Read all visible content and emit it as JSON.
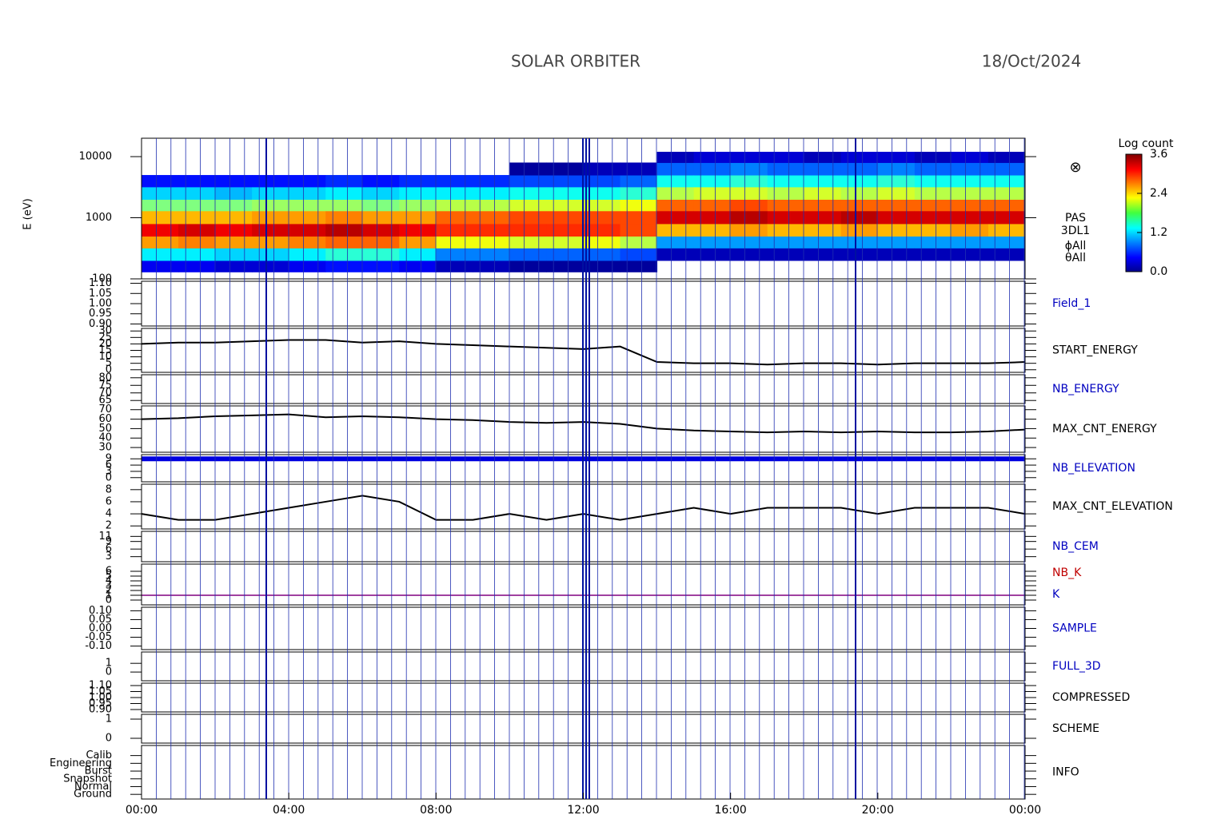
{
  "chart_data": {
    "type": "multipanel",
    "title": "SOLAR ORBITER",
    "date": "18/Oct/2024",
    "xlim": [
      0,
      24
    ],
    "xticks": [
      {
        "value": 0,
        "label": "00:00"
      },
      {
        "value": 4,
        "label": "04:00"
      },
      {
        "value": 8,
        "label": "08:00"
      },
      {
        "value": 12,
        "label": "12:00"
      },
      {
        "value": 16,
        "label": "16:00"
      },
      {
        "value": 20,
        "label": "20:00"
      },
      {
        "value": 24,
        "label": "00:00"
      }
    ],
    "x": [
      0,
      1,
      2,
      3,
      4,
      5,
      6,
      7,
      8,
      9,
      10,
      11,
      12,
      13,
      14,
      15,
      16,
      17,
      18,
      19,
      20,
      21,
      22,
      23,
      24
    ],
    "panels": [
      {
        "type": "spectrogram",
        "ylabel": "E (eV)",
        "log": true,
        "ylim": [
          100,
          20000
        ],
        "yticks": [
          100,
          1000,
          10000
        ],
        "side_labels": [
          "PAS",
          "3DL1",
          "ϕAll",
          "θAll"
        ],
        "colorbar_label": "Log count",
        "zlim": [
          0,
          3.6
        ],
        "zticks": [
          {
            "value": 0,
            "label": "0.0"
          },
          1.2,
          2.4,
          3.6
        ],
        "bins": [
          130,
          200,
          320,
          500,
          800,
          1300,
          2000,
          3200,
          5000,
          8000,
          12000
        ],
        "values": [
          [
            0.4,
            1.3,
            2.6,
            3.2,
            2.5,
            1.8,
            1.2,
            0.5,
            null,
            null
          ],
          [
            0.4,
            1.3,
            2.7,
            3.3,
            2.5,
            1.8,
            1.2,
            0.5,
            null,
            null
          ],
          [
            0.3,
            1.2,
            2.6,
            3.2,
            2.5,
            1.8,
            1.1,
            0.5,
            null,
            null
          ],
          [
            0.3,
            1.2,
            2.6,
            3.3,
            2.6,
            1.9,
            1.2,
            0.5,
            null,
            null
          ],
          [
            0.4,
            1.3,
            2.7,
            3.3,
            2.6,
            1.9,
            1.2,
            0.5,
            null,
            null
          ],
          [
            0.5,
            1.5,
            2.8,
            3.4,
            2.7,
            1.9,
            1.3,
            0.6,
            null,
            null
          ],
          [
            0.5,
            1.5,
            2.8,
            3.3,
            2.6,
            1.8,
            1.2,
            0.5,
            null,
            null
          ],
          [
            0.4,
            1.3,
            2.6,
            3.2,
            2.6,
            1.9,
            1.3,
            0.6,
            null,
            null
          ],
          [
            0.2,
            0.9,
            2.2,
            3.0,
            2.8,
            2.0,
            1.3,
            0.6,
            null,
            null
          ],
          [
            0.2,
            0.9,
            2.2,
            3.0,
            2.8,
            2.0,
            1.3,
            0.6,
            null,
            null
          ],
          [
            0.1,
            0.8,
            2.1,
            3.0,
            2.9,
            2.1,
            1.4,
            0.7,
            0.1,
            null
          ],
          [
            0.1,
            0.8,
            2.1,
            3.0,
            2.9,
            2.1,
            1.4,
            0.7,
            0.1,
            null
          ],
          [
            0.1,
            0.8,
            2.2,
            3.0,
            2.9,
            2.1,
            1.4,
            0.7,
            0.2,
            null
          ],
          [
            0.1,
            0.7,
            2.0,
            2.9,
            2.9,
            2.2,
            1.5,
            0.8,
            0.2,
            null
          ],
          [
            null,
            0.2,
            1.0,
            2.5,
            3.3,
            2.8,
            2.0,
            1.4,
            0.8,
            0.2
          ],
          [
            null,
            0.2,
            1.0,
            2.5,
            3.3,
            2.8,
            2.1,
            1.4,
            0.8,
            0.3
          ],
          [
            null,
            0.2,
            1.0,
            2.6,
            3.4,
            2.9,
            2.1,
            1.5,
            0.9,
            0.3
          ],
          [
            null,
            0.2,
            1.0,
            2.5,
            3.3,
            2.8,
            2.0,
            1.4,
            0.8,
            0.3
          ],
          [
            null,
            0.2,
            1.0,
            2.5,
            3.3,
            2.8,
            2.1,
            1.4,
            0.8,
            0.2
          ],
          [
            null,
            0.2,
            1.0,
            2.6,
            3.4,
            2.8,
            2.0,
            1.4,
            0.8,
            0.3
          ],
          [
            null,
            0.2,
            1.0,
            2.5,
            3.3,
            2.8,
            2.1,
            1.5,
            0.9,
            0.3
          ],
          [
            null,
            0.2,
            1.0,
            2.5,
            3.3,
            2.8,
            2.0,
            1.4,
            0.8,
            0.2
          ],
          [
            null,
            0.2,
            1.0,
            2.6,
            3.3,
            2.8,
            2.0,
            1.4,
            0.8,
            0.3
          ],
          [
            null,
            0.2,
            1.0,
            2.5,
            3.3,
            2.8,
            2.0,
            1.4,
            0.8,
            0.2
          ]
        ]
      },
      {
        "type": "line",
        "labels": [
          {
            "text": "Field_1",
            "color": "#0000c0"
          }
        ],
        "ylim": [
          0.89,
          1.11
        ],
        "yticks": [
          {
            "value": 0.9,
            "label": "0.90"
          },
          0.95,
          {
            "value": 1,
            "label": "1.00"
          },
          1.05,
          {
            "value": 1.1,
            "label": "1.10"
          }
        ],
        "series": []
      },
      {
        "type": "line",
        "labels": [
          {
            "text": "START_ENERGY",
            "color": "#000000"
          }
        ],
        "ylim": [
          -2,
          32
        ],
        "yticks": [
          0,
          5,
          10,
          15,
          20,
          25,
          30
        ],
        "series": [
          {
            "color": "#000000",
            "line_width": 2,
            "values": [
              20,
              21,
              21,
              22,
              23,
              23,
              21,
              22,
              20,
              19,
              18,
              17,
              16,
              18,
              6,
              5,
              5,
              4,
              5,
              5,
              4,
              5,
              5,
              5,
              6
            ]
          }
        ]
      },
      {
        "type": "line",
        "labels": [
          {
            "text": "NB_ENERGY",
            "color": "#0000c0"
          }
        ],
        "ylim": [
          63,
          82
        ],
        "yticks": [
          65,
          70,
          75,
          80
        ],
        "series": []
      },
      {
        "type": "line",
        "labels": [
          {
            "text": "MAX_CNT_ENERGY",
            "color": "#000000"
          }
        ],
        "ylim": [
          25,
          74
        ],
        "yticks": [
          30,
          40,
          50,
          60,
          70
        ],
        "series": [
          {
            "color": "#000000",
            "line_width": 2,
            "values": [
              60,
              61,
              63,
              64,
              65,
              62,
              63,
              62,
              60,
              59,
              57,
              56,
              57,
              55,
              50,
              48,
              47,
              46,
              47,
              46,
              47,
              46,
              46,
              47,
              49
            ]
          }
        ]
      },
      {
        "type": "line",
        "labels": [
          {
            "text": "NB_ELEVATION",
            "color": "#0000c0"
          }
        ],
        "ylim": [
          -2,
          11
        ],
        "yticks": [
          0,
          3,
          6,
          9
        ],
        "series": [
          {
            "color": "#0000e0",
            "line_width": 6,
            "values": [
              9,
              9,
              9,
              9,
              9,
              9,
              9,
              9,
              9,
              9,
              9,
              9,
              9,
              9,
              9,
              9,
              9,
              9,
              9,
              9,
              9,
              9,
              9,
              9,
              9
            ]
          }
        ]
      },
      {
        "type": "line",
        "labels": [
          {
            "text": "MAX_CNT_ELEVATION",
            "color": "#000000"
          }
        ],
        "ylim": [
          1.5,
          8.9
        ],
        "yticks": [
          2,
          4,
          6,
          8
        ],
        "series": [
          {
            "color": "#000000",
            "line_width": 2,
            "values": [
              4,
              3,
              3,
              4,
              5,
              6,
              7,
              6,
              3,
              3,
              4,
              3,
              4,
              3,
              4,
              5,
              4,
              5,
              5,
              5,
              4,
              5,
              5,
              5,
              4
            ]
          }
        ]
      },
      {
        "type": "line",
        "labels": [
          {
            "text": "NB_CEM",
            "color": "#0000c0"
          }
        ],
        "ylim": [
          1,
          13
        ],
        "yticks": [
          3,
          6,
          9,
          11
        ],
        "series": []
      },
      {
        "type": "line",
        "labels": [
          {
            "text": "NB_K",
            "color": "#c00000"
          },
          {
            "text": "K",
            "color": "#0000c0"
          }
        ],
        "ylim": [
          -1,
          7.5
        ],
        "yticks": [
          0,
          1,
          2,
          3,
          4,
          5,
          6
        ],
        "series": [
          {
            "color": "#800080",
            "line_width": 1.5,
            "values": [
              1,
              1,
              1,
              1,
              1,
              1,
              1,
              1,
              1,
              1,
              1,
              1,
              1,
              1,
              1,
              1,
              1,
              1,
              1,
              1,
              1,
              1,
              1,
              1,
              1
            ]
          }
        ]
      },
      {
        "type": "line",
        "labels": [
          {
            "text": "SAMPLE",
            "color": "#0000c0"
          }
        ],
        "ylim": [
          -0.12,
          0.12
        ],
        "yticks": [
          {
            "value": -0.1,
            "label": "-0.10"
          },
          -0.05,
          {
            "value": 0,
            "label": "0.00"
          },
          0.05,
          {
            "value": 0.1,
            "label": "0.10"
          }
        ],
        "series": []
      },
      {
        "type": "line",
        "labels": [
          {
            "text": "FULL_3D",
            "color": "#0000c0"
          }
        ],
        "ylim": [
          -1,
          2.3
        ],
        "yticks": [
          0,
          1
        ],
        "series": []
      },
      {
        "type": "line",
        "labels": [
          {
            "text": "COMPRESSED",
            "color": "#000000"
          }
        ],
        "ylim": [
          0.88,
          1.12
        ],
        "yticks": [
          {
            "value": 0.9,
            "label": "0.90"
          },
          0.95,
          {
            "value": 1,
            "label": "1.00"
          },
          1.05,
          {
            "value": 1.1,
            "label": "1.10"
          }
        ],
        "series": []
      },
      {
        "type": "line",
        "labels": [
          {
            "text": "SCHEME",
            "color": "#000000"
          }
        ],
        "ylim": [
          -0.25,
          1.25
        ],
        "yticks": [
          0,
          1
        ],
        "series": []
      },
      {
        "type": "line",
        "labels": [
          {
            "text": "INFO",
            "color": "#000000"
          }
        ],
        "ylim": [
          -0.6,
          6.3
        ],
        "yticks": [
          {
            "value": 0,
            "label": "Ground"
          },
          {
            "value": 1,
            "label": "Normal"
          },
          {
            "value": 2,
            "label": "Snapshot"
          },
          {
            "value": 3,
            "label": "Burst"
          },
          {
            "value": 4,
            "label": "Engineering"
          },
          {
            "value": 5,
            "label": "Calib"
          }
        ],
        "series": []
      }
    ]
  }
}
